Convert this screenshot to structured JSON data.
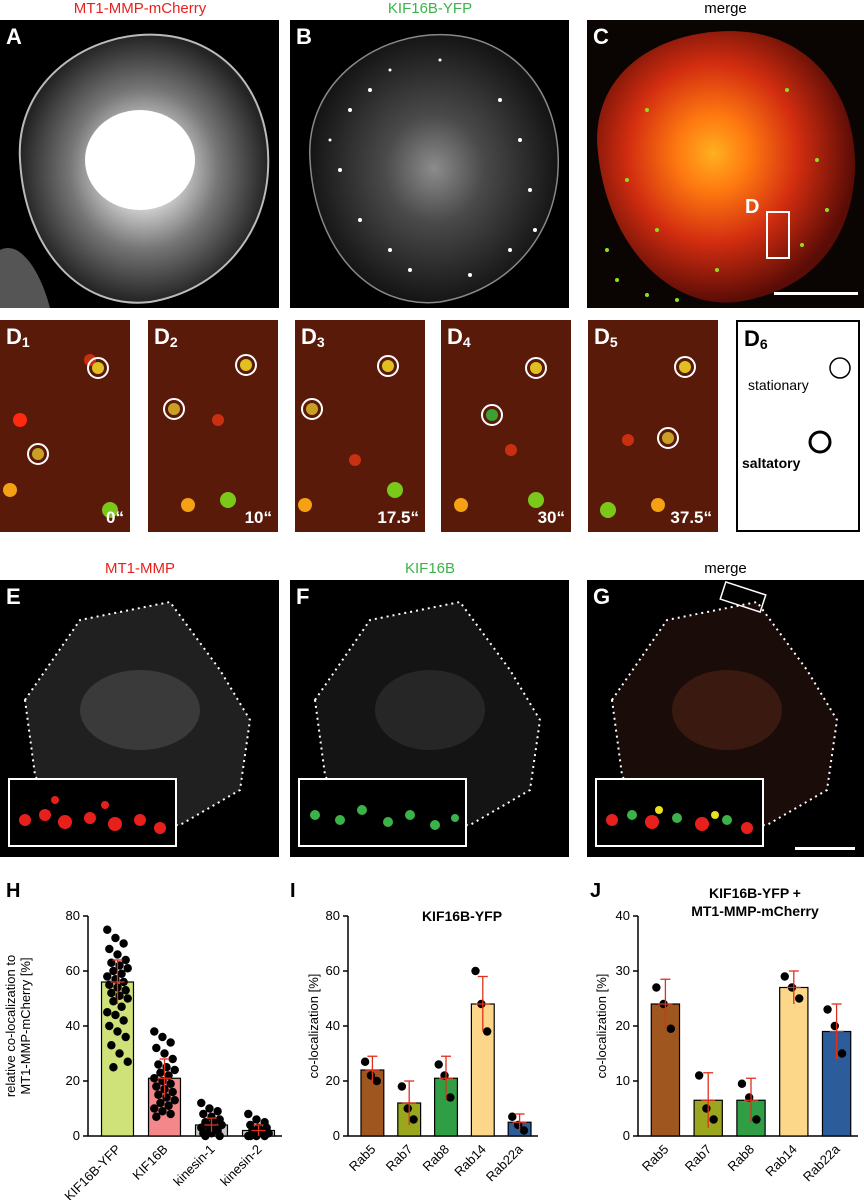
{
  "top_titles": {
    "a": {
      "text": "MT1-MMP-mCherry",
      "color": "#e8201c"
    },
    "b": {
      "text": "KIF16B-YFP",
      "color": "#3cb34a"
    },
    "c": {
      "text": "merge",
      "color": "#000000"
    }
  },
  "panels": {
    "A": "A",
    "B": "B",
    "C": "C",
    "D_marker": "D",
    "E": "E",
    "F": "F",
    "G": "G"
  },
  "d_panels": [
    {
      "label": "D",
      "sub": "1",
      "time": "0“"
    },
    {
      "label": "D",
      "sub": "2",
      "time": "10“"
    },
    {
      "label": "D",
      "sub": "3",
      "time": "17.5“"
    },
    {
      "label": "D",
      "sub": "4",
      "time": "30“"
    },
    {
      "label": "D",
      "sub": "5",
      "time": "37.5“"
    }
  ],
  "legend": {
    "label": "D",
    "sub": "6",
    "stationary": "stationary",
    "saltatory": "saltatory"
  },
  "mid_titles": {
    "e": {
      "text": "MT1-MMP",
      "color": "#e8201c"
    },
    "f": {
      "text": "KIF16B",
      "color": "#3cb34a"
    },
    "g": {
      "text": "merge",
      "color": "#000000"
    }
  },
  "charts": {
    "H": {
      "letter": "H",
      "title": "",
      "ylabel_line1": "relative co-localization to",
      "ylabel_line2": "MT1-MMP-mCherry [%]",
      "ylim": [
        0,
        80
      ],
      "yticks": [
        "0",
        "20",
        "40",
        "60",
        "80"
      ]
    },
    "I": {
      "letter": "I",
      "title": "KIF16B-YFP",
      "ylabel_line1": "co-localization [%]",
      "ylim": [
        0,
        80
      ],
      "yticks": [
        "0",
        "20",
        "40",
        "60",
        "80"
      ]
    },
    "J": {
      "letter": "J",
      "title_line1": "KIF16B-YFP +",
      "title_line2": "MT1-MMP-mCherry",
      "ylabel_line1": "co-localization [%]",
      "ylim": [
        0,
        40
      ],
      "yticks": [
        "0",
        "10",
        "20",
        "30",
        "40"
      ]
    }
  },
  "chart_data": [
    {
      "type": "bar",
      "panel": "H",
      "ylabel": "relative co-localization to MT1-MMP-mCherry [%]",
      "ylim": [
        0,
        80
      ],
      "categories": [
        "KIF16B-YFP",
        "KIF16B",
        "kinesin-1",
        "kinesin-2"
      ],
      "values": [
        56,
        21,
        4,
        2
      ],
      "errors": [
        8,
        7,
        2.5,
        2
      ],
      "colors": [
        "#cfe27a",
        "#f4878a",
        "#c8c8c8",
        "#c8c8c8"
      ],
      "points": [
        [
          75,
          72,
          70,
          68,
          66,
          64,
          63,
          62,
          61,
          60,
          59,
          58,
          57,
          56,
          55,
          54,
          53,
          52,
          51,
          50,
          49,
          47,
          45,
          44,
          42,
          40,
          38,
          36,
          33,
          30,
          27,
          25
        ],
        [
          38,
          36,
          34,
          32,
          30,
          28,
          26,
          25,
          24,
          23,
          22,
          21,
          20,
          19,
          18,
          17,
          16,
          15,
          14,
          13,
          12,
          11,
          10,
          9,
          8,
          7
        ],
        [
          12,
          10,
          9,
          8,
          7,
          6,
          5,
          5,
          4,
          4,
          3,
          3,
          2,
          2,
          1,
          1,
          0,
          0
        ],
        [
          8,
          6,
          5,
          4,
          3,
          3,
          2,
          2,
          1,
          1,
          1,
          0,
          0,
          0,
          0
        ]
      ]
    },
    {
      "type": "bar",
      "panel": "I",
      "title": "KIF16B-YFP",
      "ylabel": "co-localization [%]",
      "ylim": [
        0,
        80
      ],
      "categories": [
        "Rab5",
        "Rab7",
        "Rab8",
        "Rab14",
        "Rab22a"
      ],
      "values": [
        24,
        12,
        21,
        48,
        5
      ],
      "errors": [
        5,
        8,
        8,
        10,
        3
      ],
      "colors": [
        "#a0561f",
        "#9aa61e",
        "#2f9e44",
        "#fcd78a",
        "#2d5c9a"
      ],
      "points": [
        [
          27,
          22,
          20
        ],
        [
          18,
          10,
          6
        ],
        [
          26,
          22,
          14
        ],
        [
          60,
          48,
          38
        ],
        [
          7,
          4,
          2
        ]
      ]
    },
    {
      "type": "bar",
      "panel": "J",
      "title": "KIF16B-YFP + MT1-MMP-mCherry",
      "ylabel": "co-localization [%]",
      "ylim": [
        0,
        40
      ],
      "categories": [
        "Rab5",
        "Rab7",
        "Rab8",
        "Rab14",
        "Rab22a"
      ],
      "values": [
        24,
        6.5,
        6.5,
        27,
        19
      ],
      "errors": [
        4.5,
        5,
        4,
        3,
        5
      ],
      "colors": [
        "#a0561f",
        "#9aa61e",
        "#2f9e44",
        "#fcd78a",
        "#2d5c9a"
      ],
      "points": [
        [
          27,
          24,
          19.5
        ],
        [
          11,
          5,
          3
        ],
        [
          9.5,
          7,
          3
        ],
        [
          29,
          27,
          25
        ],
        [
          23,
          20,
          15
        ]
      ]
    }
  ]
}
